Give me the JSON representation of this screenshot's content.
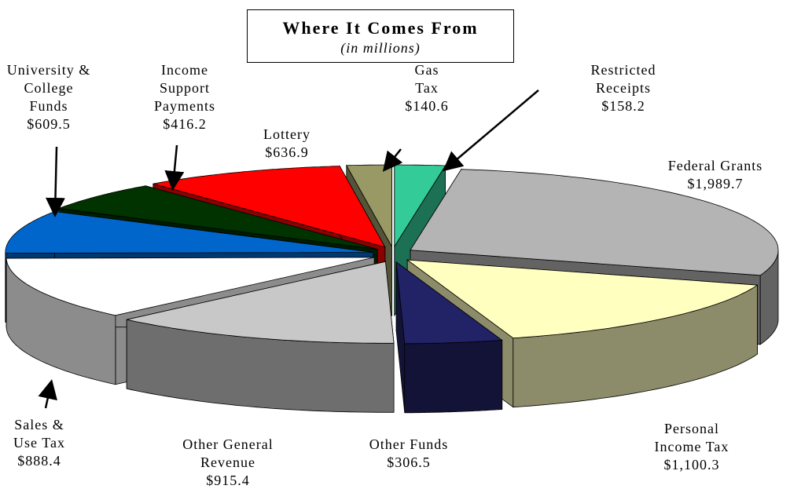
{
  "chart_data": {
    "type": "pie",
    "title": "Where It Comes From",
    "subtitle": "(in millions)",
    "categories": [
      "Restricted Receipts",
      "Federal Grants",
      "Personal Income Tax",
      "Other Funds",
      "Other General Revenue",
      "Sales & Use Tax",
      "University & College Funds",
      "Income Support Payments",
      "Lottery",
      "Gas Tax"
    ],
    "values": [
      158.2,
      1989.7,
      1100.3,
      306.5,
      915.4,
      888.4,
      609.5,
      416.2,
      636.9,
      140.6
    ],
    "value_labels": [
      "$158.2",
      "$1,989.7",
      "$1,100.3",
      "$306.5",
      "$915.4",
      "$888.4",
      "$609.5",
      "$416.2",
      "$636.9",
      "$140.6"
    ],
    "colors": [
      "#33cc99",
      "#b4b4b4",
      "#ffffc0",
      "#222266",
      "#c8c8c8",
      "#ffffff",
      "#0066cc",
      "#003300",
      "#ff0000",
      "#999966"
    ]
  }
}
